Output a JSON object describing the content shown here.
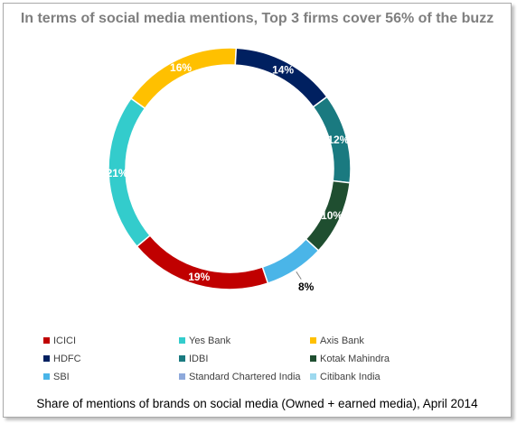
{
  "chart_data": {
    "type": "pie",
    "title": "In terms of social media mentions, Top 3 firms cover 56% of the buzz",
    "caption": "Share of mentions of brands on social media (Owned + earned media), April 2014",
    "legend_position": "bottom",
    "categories": [
      "ICICI",
      "Yes Bank",
      "Axis Bank",
      "HDFC",
      "IDBI",
      "Kotak Mahindra",
      "SBI",
      "Standard Chartered India",
      "Citibank India"
    ],
    "values": [
      19,
      21,
      16,
      14,
      12,
      10,
      8,
      0,
      0
    ],
    "labels": [
      "19%",
      "21%",
      "16%",
      "14%",
      "12%",
      "10%",
      "8%",
      "",
      ""
    ],
    "colors": [
      "#c00000",
      "#33cccc",
      "#ffc000",
      "#002060",
      "#1a7a80",
      "#1f4e30",
      "#4ab5e8",
      "#8ea9db",
      "#9dd9ef"
    ]
  }
}
